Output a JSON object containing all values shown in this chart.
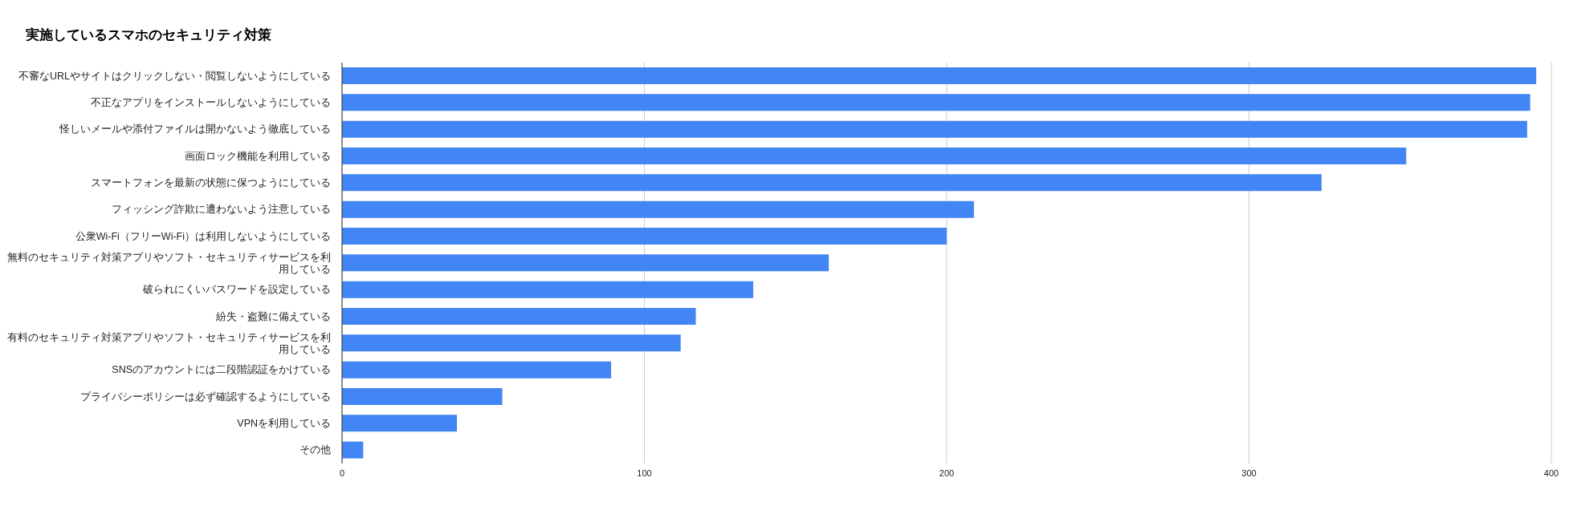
{
  "chart_data": {
    "type": "bar",
    "orientation": "horizontal",
    "title": "実施しているスマホのセキュリティ対策",
    "categories": [
      "不審なURLやサイトはクリックしない・閲覧しないようにしている",
      "不正なアプリをインストールしないようにしている",
      "怪しいメールや添付ファイルは開かないよう徹底している",
      "画面ロック機能を利用している",
      "スマートフォンを最新の状態に保つようにしている",
      "フィッシング詐欺に遭わないよう注意している",
      "公衆Wi-Fi（フリーWi-Fi）は利用しないようにしている",
      "無料のセキュリティ対策アプリやソフト・セキュリティサービスを利用している",
      "破られにくいパスワードを設定している",
      "紛失・盗難に備えている",
      "有料のセキュリティ対策アプリやソフト・セキュリティサービスを利用している",
      "SNSのアカウントには二段階認証をかけている",
      "プライバシーポリシーは必ず確認するようにしている",
      "VPNを利用している",
      "その他"
    ],
    "values": [
      395,
      393,
      392,
      352,
      324,
      209,
      200,
      161,
      136,
      117,
      112,
      89,
      53,
      38,
      7
    ],
    "color": "#4285f4",
    "xlim": [
      0,
      400
    ],
    "xticks": [
      0,
      100,
      200,
      300,
      400
    ],
    "grid": "x"
  }
}
